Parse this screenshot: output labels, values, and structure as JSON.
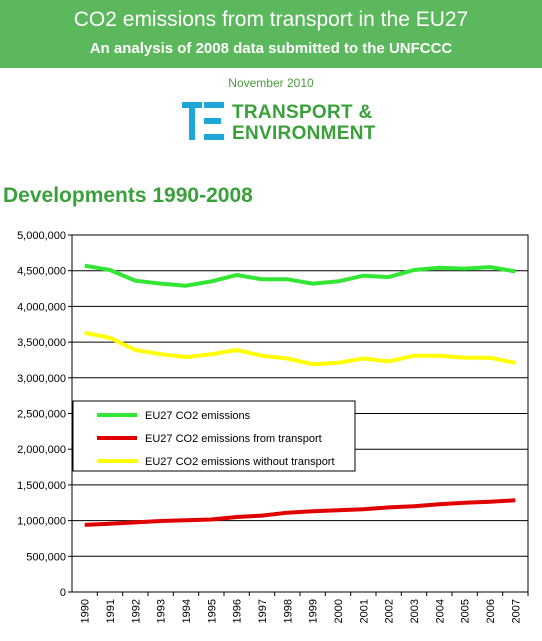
{
  "header": {
    "title": "CO2 emissions from transport in the EU27",
    "subtitle": "An analysis of 2008 data submitted to the UNFCCC",
    "date": "November 2010"
  },
  "logo": {
    "line1": "TRANSPORT &",
    "line2": "ENVIRONMENT"
  },
  "section_title": "Developments 1990-2008",
  "colors": {
    "banner": "#5cb85c",
    "accent_green": "#3aa13a",
    "logo_blue": "#1fa6d8",
    "series_total": "#33e633",
    "series_transport": "#e00000",
    "series_without": "#ffff00"
  },
  "chart_data": {
    "type": "line",
    "title": "",
    "xlabel": "",
    "ylabel": "",
    "x": [
      "1990",
      "1991",
      "1992",
      "1993",
      "1994",
      "1995",
      "1996",
      "1997",
      "1998",
      "1999",
      "2000",
      "2001",
      "2002",
      "2003",
      "2004",
      "2005",
      "2006",
      "2007"
    ],
    "ylim": [
      0,
      5000000
    ],
    "yticks": [
      "0",
      "500,000",
      "1,000,000",
      "1,500,000",
      "2,000,000",
      "2,500,000",
      "3,000,000",
      "3,500,000",
      "4,000,000",
      "4,500,000",
      "5,000,000"
    ],
    "grid": "horizontal",
    "legend_position": "middle-left",
    "series": [
      {
        "name": "EU27 CO2 emissions",
        "color": "#33e633",
        "values": [
          4570000,
          4510000,
          4360000,
          4320000,
          4290000,
          4350000,
          4440000,
          4380000,
          4380000,
          4320000,
          4350000,
          4430000,
          4410000,
          4510000,
          4540000,
          4530000,
          4550000,
          4490000
        ]
      },
      {
        "name": "EU27 CO2 emissions from transport",
        "color": "#e00000",
        "values": [
          940000,
          955000,
          975000,
          995000,
          1005000,
          1015000,
          1050000,
          1070000,
          1110000,
          1130000,
          1145000,
          1160000,
          1185000,
          1200000,
          1230000,
          1250000,
          1265000,
          1285000
        ]
      },
      {
        "name": "EU27 CO2 emissions without transport",
        "color": "#ffff00",
        "values": [
          3630000,
          3560000,
          3390000,
          3330000,
          3290000,
          3330000,
          3390000,
          3310000,
          3270000,
          3190000,
          3210000,
          3270000,
          3230000,
          3310000,
          3310000,
          3280000,
          3280000,
          3210000
        ]
      }
    ]
  }
}
